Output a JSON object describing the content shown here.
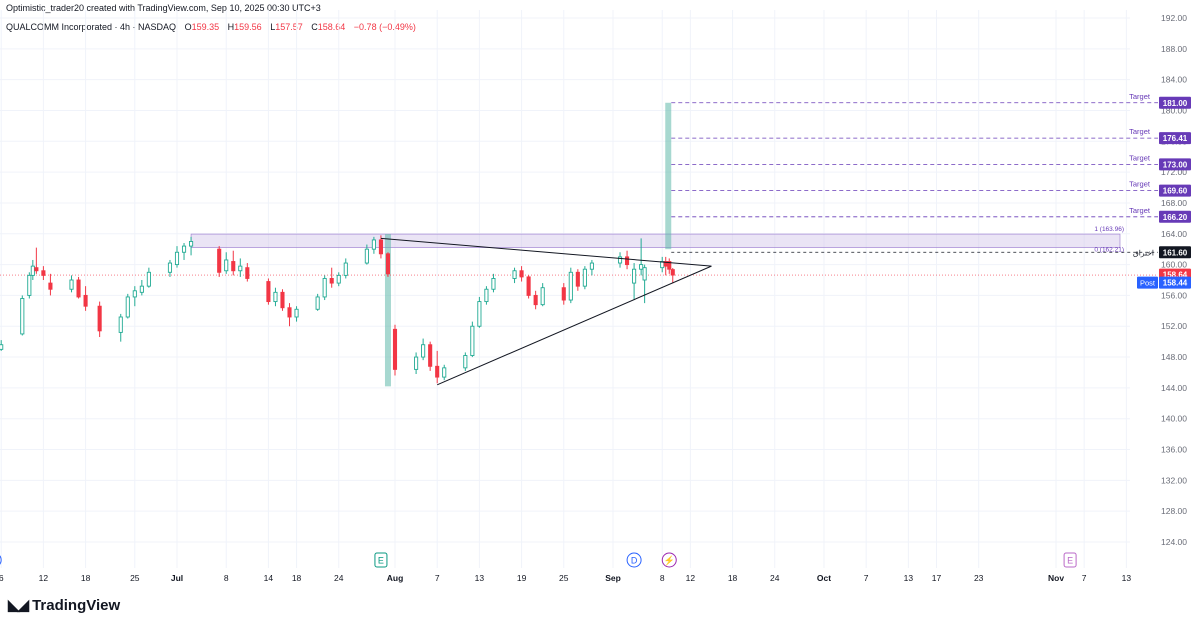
{
  "header": {
    "text": "Optimistic_trader20 created with TradingView.com, Sep 10, 2025 00:30 UTC+3"
  },
  "legend": {
    "symbol": "QUALCOMM Incorporated · 4h · NASDAQ",
    "open_label": "O",
    "open": "159.35",
    "high_label": "H",
    "high": "159.56",
    "low_label": "L",
    "low": "157.57",
    "close_label": "C",
    "close": "158.64",
    "change": "−0.78 (−0.49%)"
  },
  "footer": {
    "brand": "TradingView"
  },
  "colors": {
    "up": "#22ab94",
    "down": "#f23645",
    "target": "#673ab7",
    "zone": "#d1c4e9",
    "post": "#2962ff",
    "bar": "#5fb8aa"
  },
  "chart_data": {
    "type": "candlestick",
    "y_ticks": [
      124,
      128,
      132,
      136,
      140,
      144,
      148,
      152,
      156,
      160,
      164,
      168,
      172,
      176,
      180,
      184,
      188,
      192
    ],
    "y_tick_labels": [
      "124.00",
      "128.00",
      "132.00",
      "136.00",
      "140.00",
      "144.00",
      "148.00",
      "152.00",
      "156.00",
      "160.00",
      "164.00",
      "168.00",
      "172.00",
      "176.00",
      "180.00",
      "184.00",
      "188.00",
      "192.00"
    ],
    "x_ticks": [
      {
        "date": "2025-06-06",
        "label": "6"
      },
      {
        "date": "2025-06-12",
        "label": "12"
      },
      {
        "date": "2025-06-18",
        "label": "18"
      },
      {
        "date": "2025-06-25",
        "label": "25"
      },
      {
        "date": "2025-07-01",
        "label": "Jul"
      },
      {
        "date": "2025-07-08",
        "label": "8"
      },
      {
        "date": "2025-07-14",
        "label": "14"
      },
      {
        "date": "2025-07-18",
        "label": "18"
      },
      {
        "date": "2025-07-24",
        "label": "24"
      },
      {
        "date": "2025-08-01",
        "label": "Aug"
      },
      {
        "date": "2025-08-07",
        "label": "7"
      },
      {
        "date": "2025-08-13",
        "label": "13"
      },
      {
        "date": "2025-08-19",
        "label": "19"
      },
      {
        "date": "2025-08-25",
        "label": "25"
      },
      {
        "date": "2025-09-01",
        "label": "Sep"
      },
      {
        "date": "2025-09-08",
        "label": "8"
      },
      {
        "date": "2025-09-12",
        "label": "12"
      },
      {
        "date": "2025-09-18",
        "label": "18"
      },
      {
        "date": "2025-09-24",
        "label": "24"
      },
      {
        "date": "2025-10-01",
        "label": "Oct"
      },
      {
        "date": "2025-10-07",
        "label": "7"
      },
      {
        "date": "2025-10-13",
        "label": "13"
      },
      {
        "date": "2025-10-17",
        "label": "17"
      },
      {
        "date": "2025-10-23",
        "label": "23"
      },
      {
        "date": "2025-11-03",
        "label": "Nov"
      },
      {
        "date": "2025-11-07",
        "label": "7"
      },
      {
        "date": "2025-11-13",
        "label": "13"
      }
    ],
    "candles": [
      {
        "date": "2025-06-05",
        "o": 147.8,
        "h": 149.2,
        "l": 147.0,
        "c": 148.6
      },
      {
        "date": "2025-06-06",
        "o": 149.0,
        "h": 150.2,
        "l": 148.8,
        "c": 149.6
      },
      {
        "date": "2025-06-09",
        "o": 151.0,
        "h": 156.0,
        "l": 150.8,
        "c": 155.6
      },
      {
        "date": "2025-06-10",
        "o": 156.0,
        "h": 159.0,
        "l": 155.6,
        "c": 158.6
      },
      {
        "date": "2025-06-10",
        "o": 158.6,
        "h": 160.6,
        "l": 158.0,
        "c": 159.8
      },
      {
        "date": "2025-06-11",
        "o": 159.6,
        "h": 162.2,
        "l": 158.8,
        "c": 159.2
      },
      {
        "date": "2025-06-12",
        "o": 159.2,
        "h": 159.8,
        "l": 158.0,
        "c": 158.6
      },
      {
        "date": "2025-06-13",
        "o": 157.6,
        "h": 158.8,
        "l": 156.0,
        "c": 156.8
      },
      {
        "date": "2025-06-16",
        "o": 156.8,
        "h": 158.6,
        "l": 156.4,
        "c": 158.0
      },
      {
        "date": "2025-06-17",
        "o": 158.0,
        "h": 158.4,
        "l": 155.6,
        "c": 155.8
      },
      {
        "date": "2025-06-18",
        "o": 156.0,
        "h": 157.2,
        "l": 154.0,
        "c": 154.6
      },
      {
        "date": "2025-06-20",
        "o": 154.6,
        "h": 155.2,
        "l": 150.6,
        "c": 151.4
      },
      {
        "date": "2025-06-23",
        "o": 151.2,
        "h": 153.6,
        "l": 150.0,
        "c": 153.2
      },
      {
        "date": "2025-06-24",
        "o": 153.2,
        "h": 156.2,
        "l": 153.0,
        "c": 155.8
      },
      {
        "date": "2025-06-25",
        "o": 155.8,
        "h": 157.2,
        "l": 154.6,
        "c": 156.6
      },
      {
        "date": "2025-06-26",
        "o": 156.4,
        "h": 158.0,
        "l": 156.0,
        "c": 157.2
      },
      {
        "date": "2025-06-27",
        "o": 157.2,
        "h": 159.6,
        "l": 157.0,
        "c": 159.0
      },
      {
        "date": "2025-06-30",
        "o": 159.0,
        "h": 160.6,
        "l": 158.4,
        "c": 160.2
      },
      {
        "date": "2025-07-01",
        "o": 160.0,
        "h": 162.4,
        "l": 159.6,
        "c": 161.6
      },
      {
        "date": "2025-07-02",
        "o": 161.6,
        "h": 162.8,
        "l": 160.6,
        "c": 162.4
      },
      {
        "date": "2025-07-03",
        "o": 162.4,
        "h": 163.6,
        "l": 161.2,
        "c": 163.0
      },
      {
        "date": "2025-07-07",
        "o": 162.0,
        "h": 162.4,
        "l": 158.4,
        "c": 159.0
      },
      {
        "date": "2025-07-08",
        "o": 159.2,
        "h": 161.6,
        "l": 158.8,
        "c": 160.6
      },
      {
        "date": "2025-07-09",
        "o": 160.4,
        "h": 161.8,
        "l": 158.6,
        "c": 159.2
      },
      {
        "date": "2025-07-10",
        "o": 159.2,
        "h": 160.8,
        "l": 158.4,
        "c": 159.8
      },
      {
        "date": "2025-07-11",
        "o": 159.6,
        "h": 160.2,
        "l": 157.8,
        "c": 158.2
      },
      {
        "date": "2025-07-14",
        "o": 157.8,
        "h": 158.2,
        "l": 154.8,
        "c": 155.2
      },
      {
        "date": "2025-07-15",
        "o": 155.2,
        "h": 157.0,
        "l": 154.6,
        "c": 156.4
      },
      {
        "date": "2025-07-16",
        "o": 156.4,
        "h": 156.8,
        "l": 154.0,
        "c": 154.4
      },
      {
        "date": "2025-07-17",
        "o": 154.4,
        "h": 155.0,
        "l": 152.0,
        "c": 153.2
      },
      {
        "date": "2025-07-18",
        "o": 153.2,
        "h": 154.6,
        "l": 152.6,
        "c": 154.2
      },
      {
        "date": "2025-07-21",
        "o": 154.2,
        "h": 156.2,
        "l": 154.0,
        "c": 155.8
      },
      {
        "date": "2025-07-22",
        "o": 155.8,
        "h": 158.6,
        "l": 155.4,
        "c": 158.2
      },
      {
        "date": "2025-07-23",
        "o": 158.2,
        "h": 159.6,
        "l": 157.0,
        "c": 157.6
      },
      {
        "date": "2025-07-24",
        "o": 157.6,
        "h": 159.0,
        "l": 157.2,
        "c": 158.6
      },
      {
        "date": "2025-07-25",
        "o": 158.6,
        "h": 160.8,
        "l": 158.2,
        "c": 160.2
      },
      {
        "date": "2025-07-28",
        "o": 160.2,
        "h": 162.6,
        "l": 160.0,
        "c": 162.0
      },
      {
        "date": "2025-07-29",
        "o": 162.0,
        "h": 163.6,
        "l": 161.4,
        "c": 163.2
      },
      {
        "date": "2025-07-30",
        "o": 163.2,
        "h": 163.8,
        "l": 160.8,
        "c": 161.4
      },
      {
        "date": "2025-07-31",
        "o": 161.4,
        "h": 161.6,
        "l": 158.4,
        "c": 158.8
      },
      {
        "date": "2025-08-01",
        "o": 151.6,
        "h": 152.2,
        "l": 145.6,
        "c": 146.4
      },
      {
        "date": "2025-08-04",
        "o": 146.4,
        "h": 148.6,
        "l": 145.8,
        "c": 148.0
      },
      {
        "date": "2025-08-05",
        "o": 148.0,
        "h": 150.4,
        "l": 147.6,
        "c": 149.6
      },
      {
        "date": "2025-08-06",
        "o": 149.6,
        "h": 150.0,
        "l": 146.2,
        "c": 146.8
      },
      {
        "date": "2025-08-07",
        "o": 146.8,
        "h": 148.8,
        "l": 144.6,
        "c": 145.4
      },
      {
        "date": "2025-08-08",
        "o": 145.4,
        "h": 147.0,
        "l": 145.0,
        "c": 146.6
      },
      {
        "date": "2025-08-11",
        "o": 146.6,
        "h": 148.6,
        "l": 146.2,
        "c": 148.2
      },
      {
        "date": "2025-08-12",
        "o": 148.2,
        "h": 152.6,
        "l": 148.0,
        "c": 152.0
      },
      {
        "date": "2025-08-13",
        "o": 152.0,
        "h": 155.8,
        "l": 151.8,
        "c": 155.2
      },
      {
        "date": "2025-08-14",
        "o": 155.2,
        "h": 157.2,
        "l": 154.8,
        "c": 156.8
      },
      {
        "date": "2025-08-15",
        "o": 156.8,
        "h": 158.8,
        "l": 156.4,
        "c": 158.2
      },
      {
        "date": "2025-08-18",
        "o": 158.2,
        "h": 159.6,
        "l": 157.6,
        "c": 159.2
      },
      {
        "date": "2025-08-19",
        "o": 159.2,
        "h": 159.8,
        "l": 157.8,
        "c": 158.4
      },
      {
        "date": "2025-08-20",
        "o": 158.4,
        "h": 158.6,
        "l": 155.6,
        "c": 156.0
      },
      {
        "date": "2025-08-21",
        "o": 156.0,
        "h": 156.6,
        "l": 154.2,
        "c": 154.8
      },
      {
        "date": "2025-08-22",
        "o": 154.8,
        "h": 157.6,
        "l": 154.6,
        "c": 157.0
      },
      {
        "date": "2025-08-25",
        "o": 157.0,
        "h": 157.6,
        "l": 154.8,
        "c": 155.4
      },
      {
        "date": "2025-08-26",
        "o": 155.4,
        "h": 159.6,
        "l": 155.0,
        "c": 159.0
      },
      {
        "date": "2025-08-27",
        "o": 159.0,
        "h": 159.4,
        "l": 156.6,
        "c": 157.2
      },
      {
        "date": "2025-08-28",
        "o": 157.2,
        "h": 159.8,
        "l": 156.8,
        "c": 159.4
      },
      {
        "date": "2025-08-29",
        "o": 159.4,
        "h": 160.6,
        "l": 158.6,
        "c": 160.2
      },
      {
        "date": "2025-09-02",
        "o": 160.2,
        "h": 161.6,
        "l": 159.6,
        "c": 161.0
      },
      {
        "date": "2025-09-03",
        "o": 161.0,
        "h": 161.8,
        "l": 159.4,
        "c": 160.0
      },
      {
        "date": "2025-09-04",
        "o": 157.6,
        "h": 160.2,
        "l": 155.4,
        "c": 159.4
      },
      {
        "date": "2025-09-05",
        "o": 159.4,
        "h": 163.4,
        "l": 158.6,
        "c": 160.0
      },
      {
        "date": "2025-09-05",
        "o": 158.0,
        "h": 160.0,
        "l": 155.0,
        "c": 159.6
      },
      {
        "date": "2025-09-08",
        "o": 159.6,
        "h": 161.0,
        "l": 159.0,
        "c": 160.4
      },
      {
        "date": "2025-09-08",
        "o": 160.4,
        "h": 161.0,
        "l": 158.6,
        "c": 159.8
      },
      {
        "date": "2025-09-09",
        "o": 160.4,
        "h": 160.8,
        "l": 158.8,
        "c": 159.4
      },
      {
        "date": "2025-09-09",
        "o": 159.35,
        "h": 159.56,
        "l": 157.57,
        "c": 158.64
      }
    ],
    "resistance_zone": {
      "top": 163.96,
      "bottom": 162.21,
      "start_date": "2025-07-03",
      "label_top": "1 (163.96)",
      "label_bottom": "0 (162.21)"
    },
    "triangle": {
      "upper_start": {
        "date": "2025-07-30",
        "price": 163.4
      },
      "lower_start": {
        "date": "2025-08-07",
        "price": 144.4
      },
      "apex": {
        "date": "2025-09-15",
        "price": 159.8
      }
    },
    "breakout_line": {
      "price": 161.6,
      "label": "اختراق"
    },
    "targets": [
      {
        "price": 166.2,
        "label": "Target",
        "value_label": "166.20"
      },
      {
        "price": 169.6,
        "label": "Target",
        "value_label": "169.60"
      },
      {
        "price": 173.0,
        "label": "Target",
        "value_label": "173.00"
      },
      {
        "price": 176.41,
        "label": "Target",
        "value_label": "176.41"
      },
      {
        "price": 181.0,
        "label": "Target",
        "value_label": "181.00"
      }
    ],
    "flagpole": {
      "date": "2025-07-31",
      "top": 163.96,
      "bottom": 144.2
    },
    "projection_bar": {
      "date": "2025-09-09",
      "top": 181.0,
      "bottom": 162.0
    },
    "price_labels": [
      {
        "price": 161.6,
        "text": "161.60",
        "kind": "breakout"
      },
      {
        "price": 158.64,
        "text": "158.64",
        "kind": "last"
      },
      {
        "price": 158.44,
        "text": "158.44",
        "prefix": "Post",
        "kind": "post"
      }
    ],
    "event_markers": [
      {
        "date": "2025-06-05",
        "symbol": "D",
        "kind": "dividend"
      },
      {
        "date": "2025-07-30",
        "symbol": "E",
        "kind": "earnings"
      },
      {
        "date": "2025-09-04",
        "symbol": "D",
        "kind": "dividend"
      },
      {
        "date": "2025-09-09",
        "symbol": "⚡",
        "kind": "split"
      },
      {
        "date": "2025-11-05",
        "symbol": "E",
        "kind": "earnings"
      }
    ],
    "current_price_line": 158.64,
    "grid": true
  }
}
